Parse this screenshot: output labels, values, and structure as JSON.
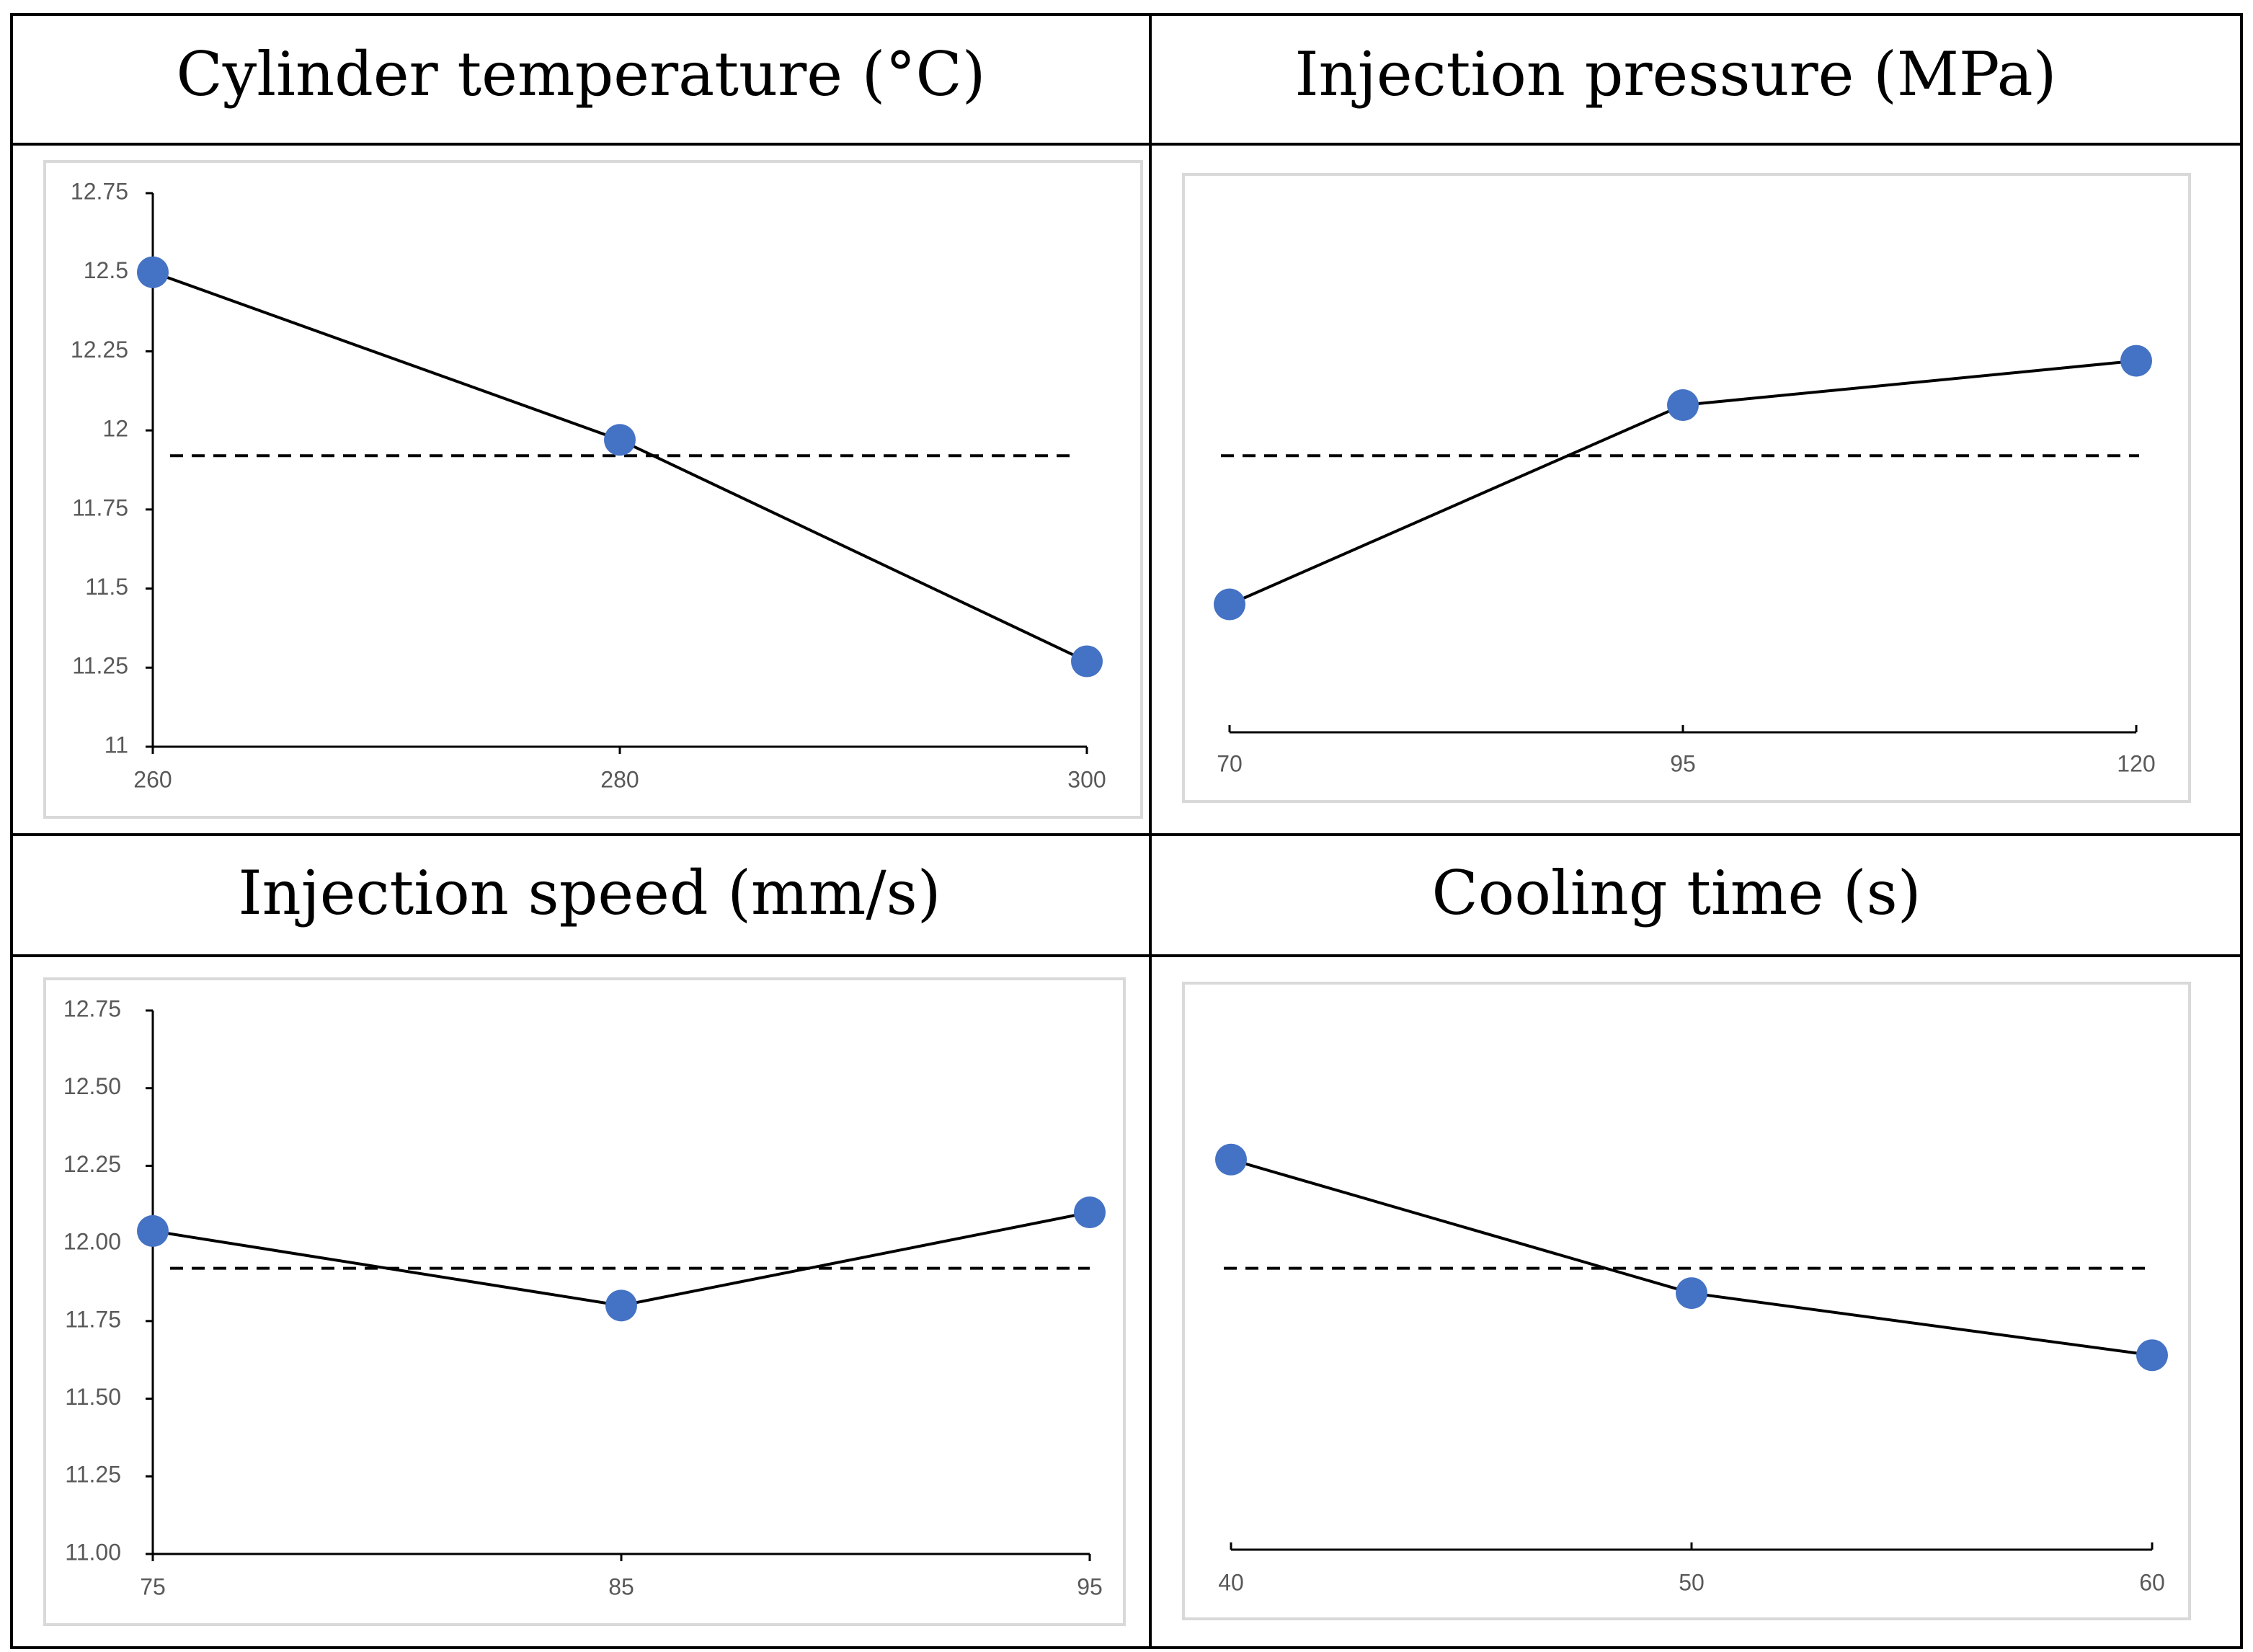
{
  "colors": {
    "marker": "#4472C4",
    "line": "#000000",
    "border": "#000000",
    "frame": "#D9D9D9",
    "tick_text": "#595959"
  },
  "chart_data": [
    {
      "type": "line",
      "title": "Cylinder temperature (°C)",
      "categories": [
        "260",
        "280",
        "300"
      ],
      "values": [
        12.5,
        11.97,
        11.27
      ],
      "mean": 11.92,
      "ylim": [
        11,
        12.75
      ],
      "yticks": [
        "11",
        "11.25",
        "11.5",
        "11.75",
        "12",
        "12.25",
        "12.5",
        "12.75"
      ],
      "xlabel": "",
      "ylabel": "",
      "show_yaxis": true
    },
    {
      "type": "line",
      "title": "Injection pressure (MPa)",
      "categories": [
        "70",
        "95",
        "120"
      ],
      "values": [
        11.45,
        12.08,
        12.22
      ],
      "mean": 11.92,
      "ylim": [
        11,
        12.75
      ],
      "yticks": [],
      "xlabel": "",
      "ylabel": "",
      "show_yaxis": false
    },
    {
      "type": "line",
      "title": "Injection speed (mm/s)",
      "categories": [
        "75",
        "85",
        "95"
      ],
      "values": [
        12.04,
        11.8,
        12.1
      ],
      "mean": 11.92,
      "ylim": [
        11,
        12.75
      ],
      "yticks": [
        "11.00",
        "11.25",
        "11.50",
        "11.75",
        "12.00",
        "12.25",
        "12.50",
        "12.75"
      ],
      "xlabel": "",
      "ylabel": "",
      "show_yaxis": true
    },
    {
      "type": "line",
      "title": "Cooling time (s)",
      "categories": [
        "40",
        "50",
        "60"
      ],
      "values": [
        12.27,
        11.84,
        11.64
      ],
      "mean": 11.92,
      "ylim": [
        11,
        12.75
      ],
      "yticks": [],
      "xlabel": "",
      "ylabel": "",
      "show_yaxis": false
    }
  ]
}
